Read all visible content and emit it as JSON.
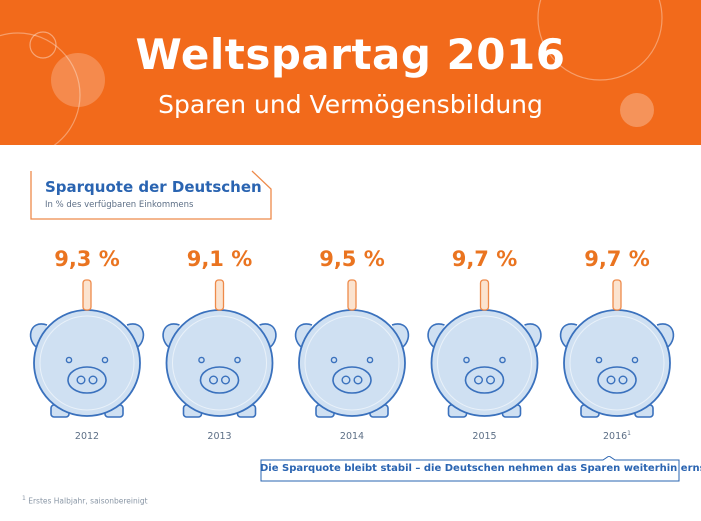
{
  "banner": {
    "title": "Weltspartag 2016",
    "subtitle": "Sparen und Vermögensbildung"
  },
  "colors": {
    "banner": "#f26a1b",
    "value_text": "#ea7420",
    "pig_fill": "#cfe0f2",
    "pig_stroke": "#3a71bd",
    "title_blue": "#2a64b1"
  },
  "chart_data": {
    "type": "pictogram",
    "title": "Sparquote der Deutschen",
    "subtitle": "In % des verfügbaren Einkommens",
    "categories": [
      "2012",
      "2013",
      "2014",
      "2015",
      "2016"
    ],
    "category_footnote_marks": [
      "",
      "",
      "",
      "",
      "1"
    ],
    "values": [
      9.3,
      9.1,
      9.5,
      9.7,
      9.7
    ],
    "value_labels": [
      "9,3 %",
      "9,1 %",
      "9,5 %",
      "9,7 %",
      "9,7 %"
    ],
    "unit": "%",
    "icon": "piggy-bank-icon"
  },
  "note": {
    "text": "Die Sparquote bleibt stabil – die Deutschen nehmen das Sparen weiterhin ernst."
  },
  "footnote": {
    "mark": "1",
    "text": "Erstes Halbjahr, saisonbereinigt"
  }
}
